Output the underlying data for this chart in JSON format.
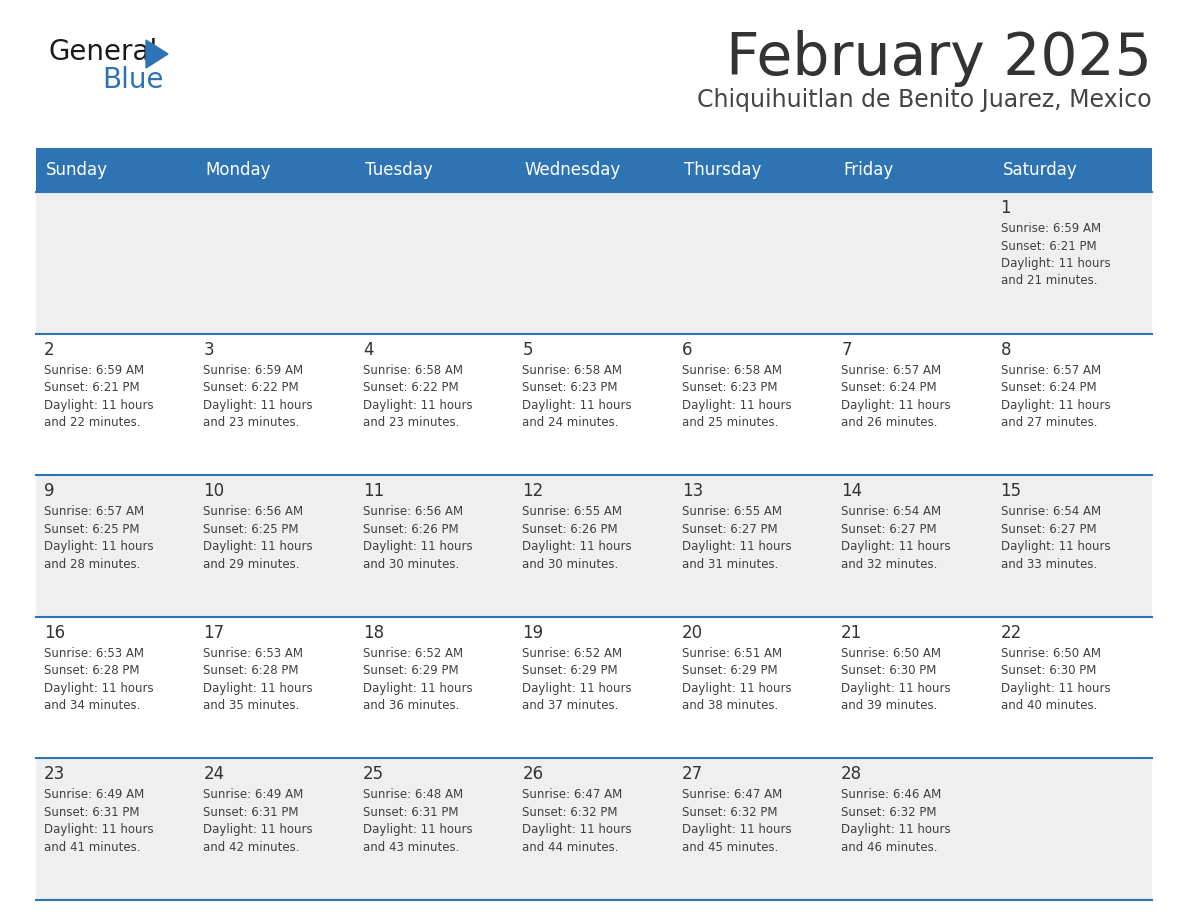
{
  "title": "February 2025",
  "subtitle": "Chiquihuitlan de Benito Juarez, Mexico",
  "days_of_week": [
    "Sunday",
    "Monday",
    "Tuesday",
    "Wednesday",
    "Thursday",
    "Friday",
    "Saturday"
  ],
  "header_bg": "#2E74B5",
  "header_text": "#FFFFFF",
  "cell_bg_odd": "#EFEFEF",
  "cell_bg_even": "#FFFFFF",
  "border_color": "#2E74B5",
  "day_num_color": "#333333",
  "info_color": "#404040",
  "title_color": "#333333",
  "subtitle_color": "#444444",
  "logo_general_color": "#1a1a1a",
  "logo_blue_color": "#2E74B5",
  "calendar_data": [
    {
      "day": 1,
      "col": 6,
      "row": 0,
      "sunrise": "6:59 AM",
      "sunset": "6:21 PM",
      "daylight": "11 hours and 21 minutes."
    },
    {
      "day": 2,
      "col": 0,
      "row": 1,
      "sunrise": "6:59 AM",
      "sunset": "6:21 PM",
      "daylight": "11 hours and 22 minutes."
    },
    {
      "day": 3,
      "col": 1,
      "row": 1,
      "sunrise": "6:59 AM",
      "sunset": "6:22 PM",
      "daylight": "11 hours and 23 minutes."
    },
    {
      "day": 4,
      "col": 2,
      "row": 1,
      "sunrise": "6:58 AM",
      "sunset": "6:22 PM",
      "daylight": "11 hours and 23 minutes."
    },
    {
      "day": 5,
      "col": 3,
      "row": 1,
      "sunrise": "6:58 AM",
      "sunset": "6:23 PM",
      "daylight": "11 hours and 24 minutes."
    },
    {
      "day": 6,
      "col": 4,
      "row": 1,
      "sunrise": "6:58 AM",
      "sunset": "6:23 PM",
      "daylight": "11 hours and 25 minutes."
    },
    {
      "day": 7,
      "col": 5,
      "row": 1,
      "sunrise": "6:57 AM",
      "sunset": "6:24 PM",
      "daylight": "11 hours and 26 minutes."
    },
    {
      "day": 8,
      "col": 6,
      "row": 1,
      "sunrise": "6:57 AM",
      "sunset": "6:24 PM",
      "daylight": "11 hours and 27 minutes."
    },
    {
      "day": 9,
      "col": 0,
      "row": 2,
      "sunrise": "6:57 AM",
      "sunset": "6:25 PM",
      "daylight": "11 hours and 28 minutes."
    },
    {
      "day": 10,
      "col": 1,
      "row": 2,
      "sunrise": "6:56 AM",
      "sunset": "6:25 PM",
      "daylight": "11 hours and 29 minutes."
    },
    {
      "day": 11,
      "col": 2,
      "row": 2,
      "sunrise": "6:56 AM",
      "sunset": "6:26 PM",
      "daylight": "11 hours and 30 minutes."
    },
    {
      "day": 12,
      "col": 3,
      "row": 2,
      "sunrise": "6:55 AM",
      "sunset": "6:26 PM",
      "daylight": "11 hours and 30 minutes."
    },
    {
      "day": 13,
      "col": 4,
      "row": 2,
      "sunrise": "6:55 AM",
      "sunset": "6:27 PM",
      "daylight": "11 hours and 31 minutes."
    },
    {
      "day": 14,
      "col": 5,
      "row": 2,
      "sunrise": "6:54 AM",
      "sunset": "6:27 PM",
      "daylight": "11 hours and 32 minutes."
    },
    {
      "day": 15,
      "col": 6,
      "row": 2,
      "sunrise": "6:54 AM",
      "sunset": "6:27 PM",
      "daylight": "11 hours and 33 minutes."
    },
    {
      "day": 16,
      "col": 0,
      "row": 3,
      "sunrise": "6:53 AM",
      "sunset": "6:28 PM",
      "daylight": "11 hours and 34 minutes."
    },
    {
      "day": 17,
      "col": 1,
      "row": 3,
      "sunrise": "6:53 AM",
      "sunset": "6:28 PM",
      "daylight": "11 hours and 35 minutes."
    },
    {
      "day": 18,
      "col": 2,
      "row": 3,
      "sunrise": "6:52 AM",
      "sunset": "6:29 PM",
      "daylight": "11 hours and 36 minutes."
    },
    {
      "day": 19,
      "col": 3,
      "row": 3,
      "sunrise": "6:52 AM",
      "sunset": "6:29 PM",
      "daylight": "11 hours and 37 minutes."
    },
    {
      "day": 20,
      "col": 4,
      "row": 3,
      "sunrise": "6:51 AM",
      "sunset": "6:29 PM",
      "daylight": "11 hours and 38 minutes."
    },
    {
      "day": 21,
      "col": 5,
      "row": 3,
      "sunrise": "6:50 AM",
      "sunset": "6:30 PM",
      "daylight": "11 hours and 39 minutes."
    },
    {
      "day": 22,
      "col": 6,
      "row": 3,
      "sunrise": "6:50 AM",
      "sunset": "6:30 PM",
      "daylight": "11 hours and 40 minutes."
    },
    {
      "day": 23,
      "col": 0,
      "row": 4,
      "sunrise": "6:49 AM",
      "sunset": "6:31 PM",
      "daylight": "11 hours and 41 minutes."
    },
    {
      "day": 24,
      "col": 1,
      "row": 4,
      "sunrise": "6:49 AM",
      "sunset": "6:31 PM",
      "daylight": "11 hours and 42 minutes."
    },
    {
      "day": 25,
      "col": 2,
      "row": 4,
      "sunrise": "6:48 AM",
      "sunset": "6:31 PM",
      "daylight": "11 hours and 43 minutes."
    },
    {
      "day": 26,
      "col": 3,
      "row": 4,
      "sunrise": "6:47 AM",
      "sunset": "6:32 PM",
      "daylight": "11 hours and 44 minutes."
    },
    {
      "day": 27,
      "col": 4,
      "row": 4,
      "sunrise": "6:47 AM",
      "sunset": "6:32 PM",
      "daylight": "11 hours and 45 minutes."
    },
    {
      "day": 28,
      "col": 5,
      "row": 4,
      "sunrise": "6:46 AM",
      "sunset": "6:32 PM",
      "daylight": "11 hours and 46 minutes."
    }
  ]
}
